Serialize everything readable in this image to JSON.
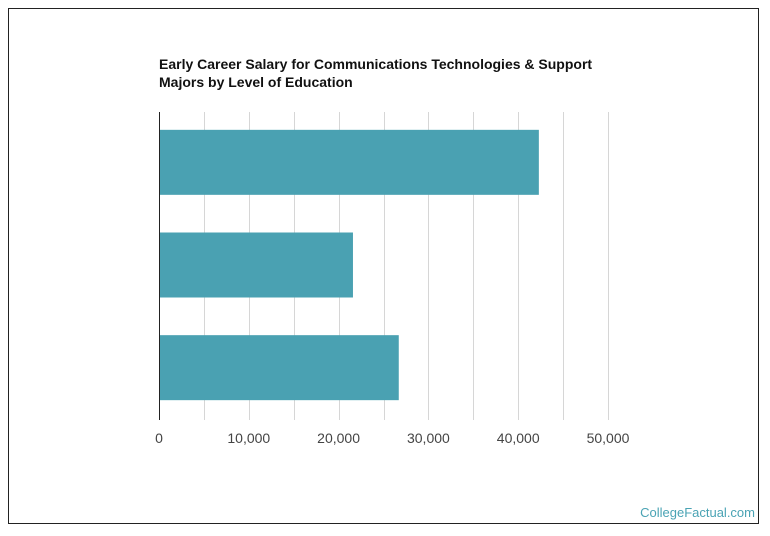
{
  "title_line1": "Early Career Salary for Communications Technologies & Support",
  "title_line2": "Majors by Level of Education",
  "credit": "CollegeFactual.com",
  "colors": {
    "bar": "#4aa1b2",
    "grid": "#d6d6d6",
    "axis": "#222222"
  },
  "chart_data": {
    "type": "bar",
    "orientation": "horizontal",
    "title": "Early Career Salary for Communications Technologies & Support Majors by Level of Education",
    "categories": [
      "",
      "",
      ""
    ],
    "values": [
      42300,
      21600,
      26700
    ],
    "xlim": [
      0,
      50000
    ],
    "xticks": [
      0,
      10000,
      20000,
      30000,
      40000,
      50000
    ],
    "xtick_labels": [
      "0",
      "10,000",
      "20,000",
      "30,000",
      "40,000",
      "50,000"
    ],
    "xlabel": "",
    "ylabel": "",
    "grid": true,
    "legend": "none"
  }
}
